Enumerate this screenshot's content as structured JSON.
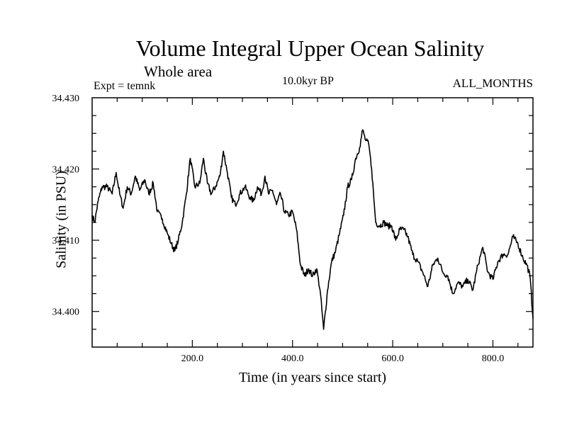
{
  "chart_data": {
    "type": "line",
    "title": "Volume Integral Upper Ocean Salinity",
    "subtitle": "Whole area",
    "experiment": "Expt = temnk",
    "period": "10.0kyr BP",
    "months": "ALL_MONTHS",
    "xlabel": "Time (in years since start)",
    "ylabel": "Salinity (in PSU)",
    "xlim": [
      0,
      880
    ],
    "ylim": [
      34.395,
      34.43
    ],
    "xticks": [
      200,
      400,
      600,
      800
    ],
    "xtick_labels": [
      "200.0",
      "400.0",
      "600.0",
      "800.0"
    ],
    "yticks": [
      34.4,
      34.41,
      34.42,
      34.43
    ],
    "ytick_labels": [
      "34.400",
      "34.410",
      "34.420",
      "34.430"
    ],
    "grid": false,
    "series": [
      {
        "name": "salinity",
        "x": [
          0,
          5,
          12,
          20,
          30,
          40,
          48,
          55,
          62,
          70,
          78,
          86,
          95,
          105,
          113,
          122,
          130,
          140,
          150,
          158,
          165,
          172,
          180,
          188,
          196,
          205,
          215,
          222,
          230,
          238,
          246,
          255,
          262,
          270,
          278,
          286,
          295,
          305,
          315,
          322,
          330,
          338,
          345,
          352,
          360,
          368,
          376,
          384,
          392,
          400,
          408,
          416,
          424,
          432,
          440,
          448,
          455,
          462,
          470,
          478,
          486,
          494,
          502,
          510,
          518,
          526,
          534,
          540,
          546,
          552,
          558,
          566,
          574,
          582,
          590,
          598,
          606,
          614,
          622,
          630,
          640,
          650,
          660,
          670,
          680,
          690,
          700,
          710,
          720,
          730,
          740,
          750,
          760,
          770,
          780,
          790,
          800,
          810,
          820,
          830,
          840,
          850,
          860,
          868,
          874,
          880
        ],
        "values": [
          34.4135,
          34.4125,
          34.4155,
          34.4175,
          34.4175,
          34.4165,
          34.4195,
          34.4165,
          34.4145,
          34.4175,
          34.4165,
          34.419,
          34.417,
          34.4185,
          34.4165,
          34.418,
          34.414,
          34.413,
          34.411,
          34.4095,
          34.4085,
          34.41,
          34.4125,
          34.4165,
          34.4215,
          34.4175,
          34.418,
          34.4215,
          34.418,
          34.4165,
          34.4175,
          34.419,
          34.4225,
          34.4195,
          34.416,
          34.415,
          34.4165,
          34.4175,
          34.416,
          34.4155,
          34.4175,
          34.4165,
          34.419,
          34.4165,
          34.417,
          34.415,
          34.4165,
          34.414,
          34.4135,
          34.414,
          34.4115,
          34.4065,
          34.405,
          34.406,
          34.405,
          34.406,
          34.403,
          34.3975,
          34.403,
          34.407,
          34.4085,
          34.411,
          34.4135,
          34.4175,
          34.4185,
          34.4215,
          34.423,
          34.4255,
          34.424,
          34.4235,
          34.42,
          34.4125,
          34.412,
          34.4125,
          34.412,
          34.412,
          34.41,
          34.4115,
          34.4115,
          34.4105,
          34.408,
          34.407,
          34.4055,
          34.4035,
          34.4065,
          34.4075,
          34.4055,
          34.405,
          34.4025,
          34.404,
          34.4035,
          34.4045,
          34.403,
          34.4065,
          34.409,
          34.4055,
          34.4045,
          34.407,
          34.408,
          34.408,
          34.4105,
          34.4095,
          34.4075,
          34.4065,
          34.405,
          34.399
        ]
      }
    ]
  }
}
